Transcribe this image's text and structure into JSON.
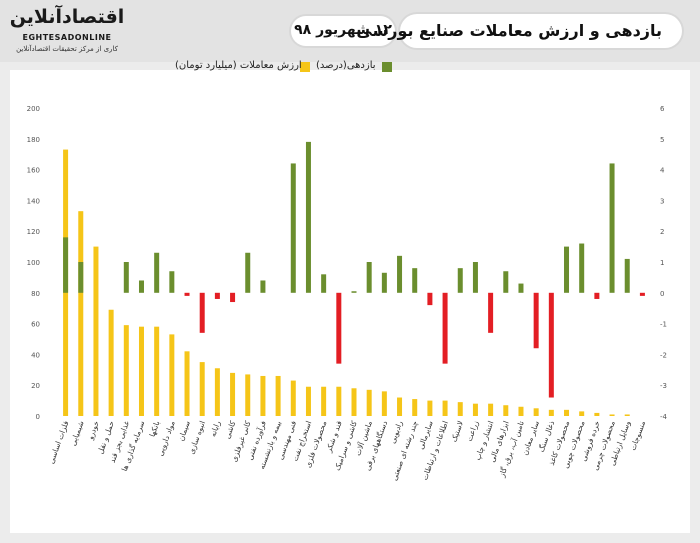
{
  "header": {
    "logo_text": "اقتصادآنلاین",
    "logo_en": "EGHTESADONLINE",
    "logo_sub": "کاری از مرکز تحقیقات اقتصادآنلاین",
    "title": "بازدهی و ارزش معاملات صنایع بورسی",
    "date": "۱۲ شهریور ۹۸"
  },
  "colors": {
    "value": "#f5c518",
    "return_pos": "#6b8e2e",
    "return_neg": "#e31e24"
  },
  "chart_data": {
    "type": "bar",
    "title": "بازدهی و ارزش معاملات صنایع بورسی",
    "legend": [
      {
        "name": "بازدهی(درصد)",
        "color": "#6b8e2e"
      },
      {
        "name": "ارزش معاملات (میلیارد تومان)",
        "color": "#f5c518"
      }
    ],
    "left_axis": {
      "ylim": [
        0,
        200
      ],
      "ticks": [
        "0",
        "20",
        "40",
        "60",
        "80",
        "100",
        "120",
        "140",
        "160",
        "180",
        "200"
      ]
    },
    "right_axis": {
      "ylim": [
        -4,
        6
      ],
      "ticks": [
        "-4",
        "-3",
        "-2",
        "-1",
        "0",
        "1",
        "2",
        "3",
        "4",
        "5",
        "6"
      ]
    },
    "categories": [
      "فلزات اساسی",
      "شیمیایی",
      "خودرو",
      "حمل و نقل",
      "غذایی بجز قند",
      "سرمایه گذاری ها",
      "بانکها",
      "مواد دارویی",
      "سیمان",
      "انبوه سازی",
      "رایانه",
      "کاشی",
      "کانی غیرفلزی",
      "فرآورده نفتی",
      "بیمه و بازنشسته",
      "فنی مهندسی",
      "استخراج نفت",
      "محصولات فلزی",
      "قند و شکر",
      "کاشی و سرامیک",
      "ماشین آلات",
      "دستگاههای برقی",
      "رادیویی",
      "چند رشته ای صنعتی",
      "سایرمالی",
      "اطلاعات و ارتباطات",
      "لاستیک",
      "زراعت",
      "انتشار و چاپ",
      "ابزارهای مالی",
      "تامین آب، برق، گاز",
      "سایر معادن",
      "ذغال سنگ",
      "محصولات کاغذ",
      "محصولات چوبی",
      "خرده فروشی",
      "محصولات چرمی",
      "وسایل ارتباطی",
      "منسوجات"
    ],
    "series": [
      {
        "name": "ارزش معاملات (میلیارد تومان)",
        "axis": "left",
        "values": [
          173,
          133,
          110,
          69,
          59,
          58,
          58,
          53,
          42,
          35,
          31,
          28,
          27,
          26,
          26,
          23,
          19,
          19,
          19,
          18,
          17,
          16,
          12,
          11,
          10,
          10,
          9,
          8,
          8,
          7,
          6,
          5,
          4,
          4,
          3,
          2,
          1,
          1,
          0
        ]
      },
      {
        "name": "بازدهی(درصد)",
        "axis": "right",
        "values": [
          1.8,
          1.0,
          0,
          0,
          1.0,
          0.4,
          1.3,
          0.7,
          -0.1,
          -1.3,
          -0.2,
          -0.3,
          1.3,
          0.4,
          0,
          4.2,
          4.9,
          0.6,
          -2.3,
          0.05,
          1.0,
          0.65,
          1.2,
          0.8,
          -0.4,
          -2.3,
          0.8,
          1.0,
          -1.3,
          0.7,
          0.3,
          -1.8,
          -3.4,
          1.5,
          1.6,
          -0.2,
          4.2,
          1.1,
          -0.1
        ]
      }
    ]
  }
}
